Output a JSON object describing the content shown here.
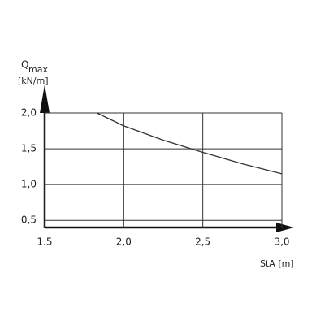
{
  "chart_data": {
    "type": "line",
    "ylabel": "Q",
    "ylabel_sub": "max",
    "yunit": "[kN/m]",
    "xlabel": "StA [m]",
    "x": [
      1.83,
      2.0,
      2.25,
      2.5,
      2.75,
      3.0
    ],
    "values": [
      2.0,
      1.82,
      1.62,
      1.45,
      1.29,
      1.15
    ],
    "color": "#333333",
    "xlim": [
      1.5,
      3.0
    ],
    "xticks": [
      1.5,
      {
        "value": 2.0,
        "label": "2,0"
      },
      {
        "value": 2.5,
        "label": "2,5"
      },
      {
        "value": 3.0,
        "label": "3,0"
      }
    ],
    "ylim": [
      0.4,
      2.0
    ],
    "yticks": [
      {
        "value": 0.5,
        "label": "0,5"
      },
      {
        "value": 1.0,
        "label": "1,0"
      },
      {
        "value": 1.5,
        "label": "1,5"
      },
      {
        "value": 2.0,
        "label": "2,0"
      }
    ],
    "grid": true
  }
}
